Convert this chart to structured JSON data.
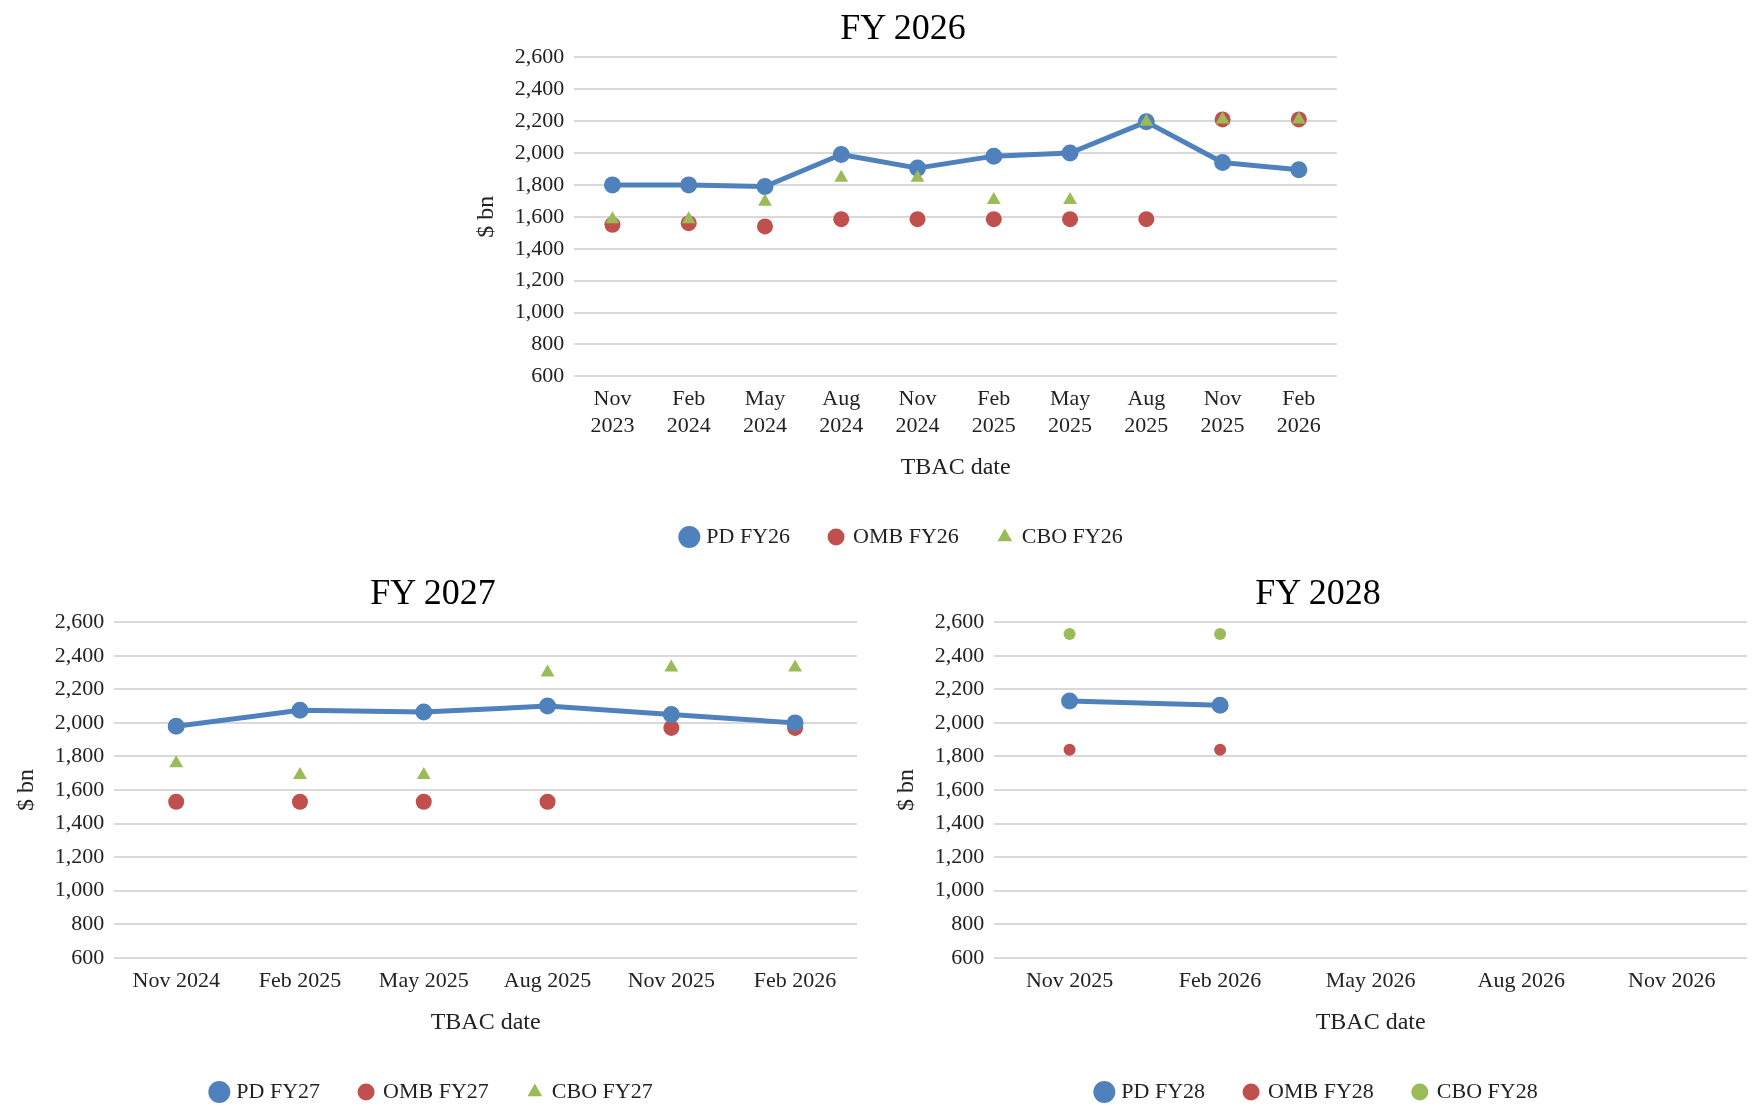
{
  "chart_data": [
    {
      "type": "line",
      "title": "FY 2026",
      "xlabel": "TBAC date",
      "ylabel": "$ bn",
      "categories": [
        "Nov 2023",
        "Feb 2024",
        "May 2024",
        "Aug 2024",
        "Nov 2024",
        "Feb 2025",
        "May 2025",
        "Aug 2025",
        "Nov 2025",
        "Feb 2026"
      ],
      "series": [
        {
          "name": "PD FY26",
          "type": "line",
          "color": "#4f81bd",
          "marker": "circle",
          "values": [
            1800,
            1800,
            1790,
            1990,
            1905,
            1980,
            2000,
            2195,
            1940,
            1895
          ]
        },
        {
          "name": "OMB FY26",
          "type": "scatter",
          "color": "#c0504d",
          "marker": "circle",
          "values": [
            1550,
            1560,
            1540,
            1585,
            1585,
            1585,
            1585,
            1585,
            2210,
            2210
          ]
        },
        {
          "name": "CBO FY26",
          "type": "scatter",
          "color": "#9bbb59",
          "marker": "triangle",
          "values": [
            1585,
            1585,
            1695,
            1845,
            1845,
            1705,
            1705,
            2195,
            2210,
            2210
          ]
        }
      ],
      "ylim": [
        600,
        2600
      ],
      "yticks": [
        {
          "value": 600,
          "label": "600"
        },
        {
          "value": 800,
          "label": "800"
        },
        {
          "value": 1000,
          "label": "1,000"
        },
        {
          "value": 1200,
          "label": "1,200"
        },
        {
          "value": 1400,
          "label": "1,400"
        },
        {
          "value": 1600,
          "label": "1,600"
        },
        {
          "value": 1800,
          "label": "1,800"
        },
        {
          "value": 2000,
          "label": "2,000"
        },
        {
          "value": 2200,
          "label": "2,200"
        },
        {
          "value": 2400,
          "label": "2,400"
        },
        {
          "value": 2600,
          "label": "2,600"
        }
      ],
      "grid": "y",
      "legend": "bottom"
    },
    {
      "type": "line",
      "title": "FY 2027",
      "xlabel": "TBAC date",
      "ylabel": "$ bn",
      "categories": [
        "Nov 2024",
        "Feb 2025",
        "May 2025",
        "Aug 2025",
        "Nov 2025",
        "Feb 2026"
      ],
      "series": [
        {
          "name": "PD FY27",
          "type": "line",
          "color": "#4f81bd",
          "marker": "circle",
          "values": [
            1980,
            2075,
            2065,
            2100,
            2050,
            2000
          ]
        },
        {
          "name": "OMB FY27",
          "type": "scatter",
          "color": "#c0504d",
          "marker": "circle",
          "values": [
            1530,
            1530,
            1530,
            1530,
            1970,
            1970
          ]
        },
        {
          "name": "CBO FY27",
          "type": "scatter",
          "color": "#9bbb59",
          "marker": "triangle",
          "values": [
            1760,
            1690,
            1690,
            2300,
            2330,
            2330
          ]
        }
      ],
      "ylim": [
        600,
        2600
      ],
      "yticks": [
        {
          "value": 600,
          "label": "600"
        },
        {
          "value": 800,
          "label": "800"
        },
        {
          "value": 1000,
          "label": "1,000"
        },
        {
          "value": 1200,
          "label": "1,200"
        },
        {
          "value": 1400,
          "label": "1,400"
        },
        {
          "value": 1600,
          "label": "1,600"
        },
        {
          "value": 1800,
          "label": "1,800"
        },
        {
          "value": 2000,
          "label": "2,000"
        },
        {
          "value": 2200,
          "label": "2,200"
        },
        {
          "value": 2400,
          "label": "2,400"
        },
        {
          "value": 2600,
          "label": "2,600"
        }
      ],
      "grid": "y",
      "legend": "bottom"
    },
    {
      "type": "line",
      "title": "FY 2028",
      "xlabel": "TBAC date",
      "ylabel": "$ bn",
      "categories": [
        "Nov 2025",
        "Feb 2026",
        "May 2026",
        "Aug 2026",
        "Nov 2026"
      ],
      "series": [
        {
          "name": "PD FY28",
          "type": "line",
          "color": "#4f81bd",
          "marker": "circle",
          "values": [
            2130,
            2105,
            null,
            null,
            null
          ]
        },
        {
          "name": "OMB FY28",
          "type": "scatter",
          "color": "#c0504d",
          "marker": "circle",
          "values": [
            1840,
            1840,
            null,
            null,
            null
          ]
        },
        {
          "name": "CBO FY28",
          "type": "scatter",
          "color": "#9bbb59",
          "marker": "circle",
          "values": [
            2530,
            2530,
            null,
            null,
            null
          ]
        }
      ],
      "ylim": [
        600,
        2600
      ],
      "yticks": [
        {
          "value": 600,
          "label": "600"
        },
        {
          "value": 800,
          "label": "800"
        },
        {
          "value": 1000,
          "label": "1,000"
        },
        {
          "value": 1200,
          "label": "1,200"
        },
        {
          "value": 1400,
          "label": "1,400"
        },
        {
          "value": 1600,
          "label": "1,600"
        },
        {
          "value": 1800,
          "label": "1,800"
        },
        {
          "value": 2000,
          "label": "2,000"
        },
        {
          "value": 2200,
          "label": "2,200"
        },
        {
          "value": 2400,
          "label": "2,400"
        },
        {
          "value": 2600,
          "label": "2,600"
        }
      ],
      "grid": "y",
      "legend": "bottom"
    }
  ]
}
